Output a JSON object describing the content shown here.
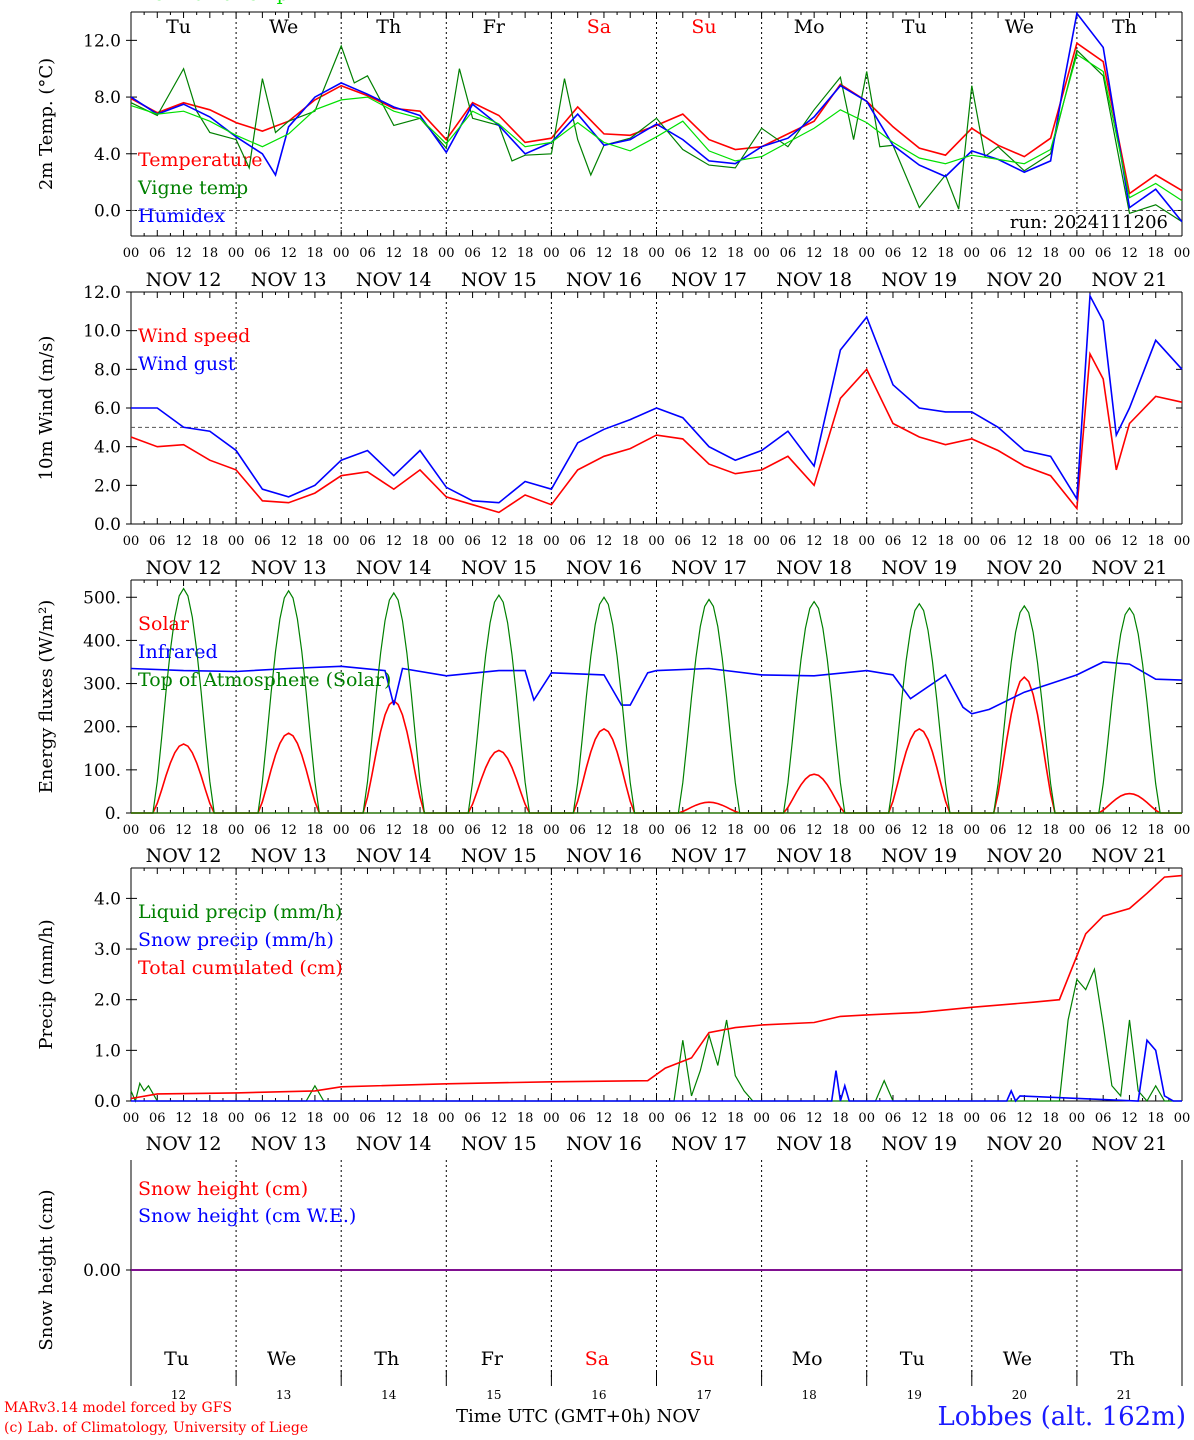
{
  "days": {
    "weekdays": [
      "Tu",
      "We",
      "Th",
      "Fr",
      "Sa",
      "Su",
      "Mo",
      "Tu",
      "We",
      "Th"
    ],
    "weekend_flags": [
      false,
      false,
      false,
      false,
      true,
      true,
      false,
      false,
      false,
      false
    ],
    "dates": [
      "NOV 12",
      "NOV 13",
      "NOV 14",
      "NOV 15",
      "NOV 16",
      "NOV 17",
      "NOV 18",
      "NOV 19",
      "NOV 20",
      "NOV 21"
    ],
    "day_numbers": [
      "12",
      "13",
      "14",
      "15",
      "16",
      "17",
      "18",
      "19",
      "20",
      "21"
    ],
    "hour_ticks": [
      "00",
      "06",
      "12",
      "18"
    ],
    "final_hour": "00"
  },
  "colors": {
    "red": "#ff0000",
    "green": "#008000",
    "blue": "#0000ff",
    "lightgreen": "#00e000",
    "purple": "#800080",
    "weekend": "#ff0000"
  },
  "footer": {
    "credit_line1": "MARv3.14 model forced by GFS",
    "credit_line2": "(c) Lab. of Climatology, University of Liege",
    "xlabel": "Time UTC (GMT+0h)",
    "month": "NOV",
    "station": "Lobbes (alt. 162m)"
  },
  "chart_data": [
    {
      "type": "line",
      "ylabel": "2m Temp. (°C)",
      "ylim": [
        -1.8,
        14.0
      ],
      "yticks": [
        0.0,
        4.0,
        8.0,
        12.0
      ],
      "ytick_labels": [
        "0.0",
        "4.0",
        "8.0",
        "12.0"
      ],
      "reference_line": 0.0,
      "annotation": "run: 2024111206",
      "x_unit": "hours since NOV 12 00 UTC",
      "xlim": [
        0,
        240
      ],
      "grid": "vertical dotted at 00 UTC",
      "legend_placement": "left",
      "series": [
        {
          "name": "Temperature",
          "color": "red",
          "x": [
            0,
            6,
            12,
            18,
            24,
            30,
            36,
            42,
            48,
            54,
            60,
            66,
            72,
            78,
            84,
            90,
            96,
            102,
            108,
            114,
            120,
            126,
            132,
            138,
            144,
            150,
            156,
            162,
            168,
            174,
            180,
            186,
            192,
            198,
            204,
            210,
            216,
            222,
            228,
            234,
            240
          ],
          "y": [
            7.9,
            6.9,
            7.6,
            7.1,
            6.2,
            5.6,
            6.3,
            7.8,
            8.8,
            8.1,
            7.2,
            7.0,
            5.0,
            7.6,
            6.7,
            4.8,
            5.1,
            7.3,
            5.4,
            5.3,
            6.0,
            6.8,
            5.0,
            4.3,
            4.5,
            5.4,
            6.3,
            8.9,
            7.7,
            5.9,
            4.4,
            3.9,
            5.8,
            4.6,
            3.8,
            5.1,
            11.8,
            10.5,
            1.2,
            2.5,
            1.4
          ]
        },
        {
          "name": "Vigne temp",
          "color": "green",
          "x": [
            0,
            6,
            12,
            15,
            18,
            24,
            27,
            30,
            33,
            36,
            42,
            48,
            51,
            54,
            60,
            66,
            72,
            75,
            78,
            84,
            87,
            90,
            96,
            99,
            102,
            105,
            108,
            114,
            120,
            126,
            132,
            138,
            144,
            150,
            156,
            162,
            165,
            168,
            171,
            174,
            180,
            186,
            189,
            192,
            195,
            198,
            204,
            210,
            216,
            222,
            228,
            234,
            240
          ],
          "y": [
            7.6,
            6.7,
            10.0,
            7.0,
            5.5,
            5.0,
            3.0,
            9.3,
            5.5,
            6.3,
            7.0,
            11.6,
            9.0,
            9.5,
            6.0,
            6.5,
            4.4,
            10.0,
            6.5,
            6.0,
            3.5,
            3.9,
            4.0,
            9.3,
            5.0,
            2.5,
            4.6,
            5.1,
            6.5,
            4.3,
            3.2,
            3.0,
            5.8,
            4.5,
            7.1,
            9.4,
            5.0,
            9.8,
            4.5,
            4.6,
            0.2,
            2.5,
            0.1,
            8.8,
            3.8,
            4.5,
            2.8,
            4.0,
            11.3,
            9.5,
            -0.2,
            0.4,
            -0.8
          ]
        },
        {
          "name": "Humidex",
          "color": "blue",
          "x": [
            0,
            6,
            12,
            18,
            24,
            30,
            33,
            36,
            42,
            48,
            54,
            60,
            66,
            72,
            78,
            84,
            90,
            96,
            102,
            108,
            114,
            120,
            126,
            132,
            138,
            144,
            150,
            156,
            162,
            168,
            174,
            180,
            186,
            192,
            198,
            204,
            210,
            213,
            216,
            222,
            228,
            234,
            240
          ],
          "y": [
            8.0,
            6.8,
            7.5,
            6.6,
            5.2,
            4.0,
            2.5,
            5.9,
            8.0,
            9.0,
            8.2,
            7.3,
            6.7,
            4.1,
            7.5,
            6.0,
            4.0,
            4.8,
            6.8,
            4.6,
            5.0,
            6.1,
            5.0,
            3.5,
            3.3,
            4.5,
            5.1,
            6.6,
            8.8,
            7.7,
            4.6,
            3.2,
            2.4,
            4.2,
            3.6,
            2.7,
            3.5,
            9.0,
            13.9,
            11.5,
            0.2,
            1.5,
            -0.8
          ]
        },
        {
          "name": "DewPoint Temp",
          "color": "lightgreen",
          "x": [
            0,
            6,
            12,
            18,
            24,
            30,
            36,
            42,
            48,
            54,
            60,
            66,
            72,
            78,
            84,
            90,
            96,
            102,
            108,
            114,
            120,
            126,
            132,
            138,
            144,
            150,
            156,
            162,
            168,
            174,
            180,
            186,
            192,
            198,
            204,
            210,
            216,
            222,
            228,
            234,
            240
          ],
          "y": [
            7.4,
            6.8,
            7.0,
            6.3,
            5.3,
            4.5,
            5.4,
            7.1,
            7.8,
            8.0,
            7.0,
            6.5,
            4.7,
            7.0,
            6.1,
            4.5,
            4.8,
            6.2,
            4.8,
            4.2,
            5.2,
            6.3,
            4.2,
            3.5,
            3.8,
            4.8,
            5.8,
            7.1,
            6.2,
            4.8,
            3.7,
            3.3,
            3.9,
            3.6,
            3.3,
            4.3,
            11.0,
            9.8,
            0.9,
            1.9,
            0.7
          ]
        }
      ]
    },
    {
      "type": "line",
      "ylabel": "10m Wind (m/s)",
      "ylim": [
        0,
        12.0
      ],
      "yticks": [
        0.0,
        2.0,
        4.0,
        6.0,
        8.0,
        10.0,
        12.0
      ],
      "ytick_labels": [
        "0.0",
        "2.0",
        "4.0",
        "6.0",
        "8.0",
        "10.0",
        "12.0"
      ],
      "reference_line": 5.0,
      "x_unit": "hours since NOV 12 00 UTC",
      "xlim": [
        0,
        240
      ],
      "legend_placement": "left",
      "series": [
        {
          "name": "Wind speed",
          "color": "red",
          "x": [
            0,
            6,
            12,
            18,
            24,
            30,
            36,
            42,
            48,
            54,
            60,
            66,
            72,
            78,
            84,
            90,
            96,
            102,
            108,
            114,
            120,
            126,
            132,
            138,
            144,
            150,
            156,
            162,
            168,
            174,
            180,
            186,
            192,
            198,
            204,
            210,
            216,
            219,
            222,
            225,
            228,
            234,
            240
          ],
          "y": [
            4.5,
            4.0,
            4.1,
            3.3,
            2.8,
            1.2,
            1.1,
            1.6,
            2.5,
            2.7,
            1.8,
            2.8,
            1.4,
            1.0,
            0.6,
            1.5,
            1.0,
            2.8,
            3.5,
            3.9,
            4.6,
            4.4,
            3.1,
            2.6,
            2.8,
            3.5,
            2.0,
            6.5,
            8.0,
            5.2,
            4.5,
            4.1,
            4.4,
            3.8,
            3.0,
            2.5,
            0.8,
            8.8,
            7.5,
            2.8,
            5.2,
            6.6,
            6.3
          ]
        },
        {
          "name": "Wind gust",
          "color": "blue",
          "x": [
            0,
            6,
            12,
            18,
            24,
            30,
            36,
            42,
            48,
            54,
            60,
            66,
            72,
            78,
            84,
            90,
            96,
            102,
            108,
            114,
            120,
            126,
            132,
            138,
            144,
            150,
            156,
            162,
            168,
            174,
            180,
            186,
            192,
            198,
            204,
            210,
            216,
            219,
            222,
            225,
            228,
            234,
            240
          ],
          "y": [
            6.0,
            6.0,
            5.0,
            4.8,
            3.8,
            1.8,
            1.4,
            2.0,
            3.3,
            3.8,
            2.5,
            3.8,
            1.9,
            1.2,
            1.1,
            2.2,
            1.8,
            4.2,
            4.9,
            5.4,
            6.0,
            5.5,
            4.0,
            3.3,
            3.8,
            4.8,
            3.0,
            9.0,
            10.7,
            7.2,
            6.0,
            5.8,
            5.8,
            5.0,
            3.8,
            3.5,
            1.3,
            11.8,
            10.5,
            4.6,
            6.0,
            9.5,
            8.0
          ]
        }
      ]
    },
    {
      "type": "line",
      "ylabel": "Energy fluxes (W/m²)",
      "ylim": [
        0,
        540
      ],
      "yticks": [
        0,
        100,
        200,
        300,
        400,
        500
      ],
      "ytick_labels": [
        "0.",
        "100.",
        "200.",
        "300.",
        "400.",
        "500."
      ],
      "x_unit": "hours since NOV 12 00 UTC",
      "xlim": [
        0,
        240
      ],
      "legend_placement": "left",
      "series": [
        {
          "name": "Solar",
          "color": "red",
          "peaks": [
            [
              12,
              160
            ],
            [
              36,
              185
            ],
            [
              60,
              260
            ],
            [
              84,
              145
            ],
            [
              108,
              195
            ],
            [
              132,
              25
            ],
            [
              156,
              90
            ],
            [
              180,
              195
            ],
            [
              204,
              315
            ],
            [
              228,
              45
            ]
          ]
        },
        {
          "name": "Infrared",
          "color": "blue",
          "x": [
            0,
            12,
            24,
            36,
            48,
            58,
            60,
            62,
            72,
            84,
            90,
            92,
            96,
            108,
            112,
            114,
            118,
            120,
            132,
            144,
            156,
            168,
            174,
            178,
            186,
            190,
            192,
            196,
            204,
            210,
            216,
            222,
            228,
            234,
            240
          ],
          "y": [
            335,
            330,
            328,
            335,
            340,
            330,
            250,
            335,
            318,
            330,
            330,
            262,
            325,
            320,
            250,
            250,
            325,
            330,
            335,
            320,
            318,
            330,
            320,
            265,
            320,
            245,
            230,
            240,
            280,
            300,
            320,
            350,
            345,
            310,
            308
          ]
        },
        {
          "name": "Top of Atmosphere (Solar)",
          "color": "green",
          "peaks": [
            [
              12,
              520
            ],
            [
              36,
              515
            ],
            [
              60,
              510
            ],
            [
              84,
              505
            ],
            [
              108,
              500
            ],
            [
              132,
              495
            ],
            [
              156,
              490
            ],
            [
              180,
              485
            ],
            [
              204,
              480
            ],
            [
              228,
              475
            ]
          ]
        }
      ]
    },
    {
      "type": "line",
      "ylabel": "Precip (mm/h)",
      "ylim": [
        0,
        4.6
      ],
      "yticks": [
        0.0,
        1.0,
        2.0,
        3.0,
        4.0
      ],
      "ytick_labels": [
        "0.0",
        "1.0",
        "2.0",
        "3.0",
        "4.0"
      ],
      "x_unit": "hours since NOV 12 00 UTC",
      "xlim": [
        0,
        240
      ],
      "legend_placement": "left",
      "series": [
        {
          "name": "Liquid precip (mm/h)",
          "color": "green",
          "x": [
            0,
            1,
            2,
            3,
            4,
            6,
            24,
            40,
            42,
            44,
            60,
            120,
            124,
            126,
            128,
            130,
            132,
            134,
            136,
            138,
            140,
            142,
            156,
            170,
            172,
            174,
            200,
            212,
            214,
            216,
            218,
            220,
            222,
            224,
            226,
            228,
            230,
            232,
            234,
            236,
            238,
            240
          ],
          "y": [
            0.2,
            0.0,
            0.35,
            0.2,
            0.3,
            0.0,
            0.0,
            0.0,
            0.3,
            0.0,
            0.0,
            0.0,
            0.0,
            1.2,
            0.1,
            0.6,
            1.3,
            0.7,
            1.6,
            0.5,
            0.2,
            0.0,
            0.0,
            0.0,
            0.4,
            0.0,
            0.0,
            0.0,
            1.6,
            2.4,
            2.2,
            2.6,
            1.5,
            0.3,
            0.1,
            1.6,
            0.2,
            0.0,
            0.3,
            0.0,
            0.0,
            0.0
          ]
        },
        {
          "name": "Snow precip (mm/h)",
          "color": "blue",
          "x": [
            0,
            160,
            161,
            162,
            163,
            164,
            200,
            201,
            202,
            203,
            230,
            232,
            234,
            236,
            238,
            240
          ],
          "y": [
            0,
            0,
            0.6,
            0.0,
            0.3,
            0.0,
            0.0,
            0.2,
            0.0,
            0.1,
            0.0,
            1.2,
            1.0,
            0.1,
            0.0,
            0.0
          ]
        },
        {
          "name": "Total cumulated (cm)",
          "color": "red",
          "x": [
            0,
            6,
            24,
            42,
            48,
            72,
            96,
            118,
            122,
            128,
            132,
            138,
            144,
            156,
            162,
            168,
            180,
            192,
            206,
            212,
            218,
            222,
            228,
            232,
            236,
            240
          ],
          "y": [
            0.05,
            0.14,
            0.16,
            0.2,
            0.28,
            0.34,
            0.38,
            0.4,
            0.65,
            0.85,
            1.35,
            1.45,
            1.5,
            1.55,
            1.67,
            1.7,
            1.75,
            1.85,
            1.95,
            2.0,
            3.3,
            3.65,
            3.8,
            4.1,
            4.42,
            4.45
          ]
        }
      ]
    },
    {
      "type": "line",
      "ylabel": "Snow height (cm)",
      "ylim": [
        -1,
        1
      ],
      "yticks": [
        0.0
      ],
      "ytick_labels": [
        "0.00"
      ],
      "x_unit": "hours since NOV 12 00 UTC",
      "xlim": [
        0,
        240
      ],
      "legend_placement": "left",
      "series": [
        {
          "name": "Snow height (cm)",
          "color": "red",
          "x": [
            0,
            240
          ],
          "y": [
            0,
            0
          ]
        },
        {
          "name": "Snow height (cm W.E.)",
          "color": "blue",
          "x": [
            0,
            240
          ],
          "y": [
            0,
            0
          ]
        }
      ]
    }
  ]
}
